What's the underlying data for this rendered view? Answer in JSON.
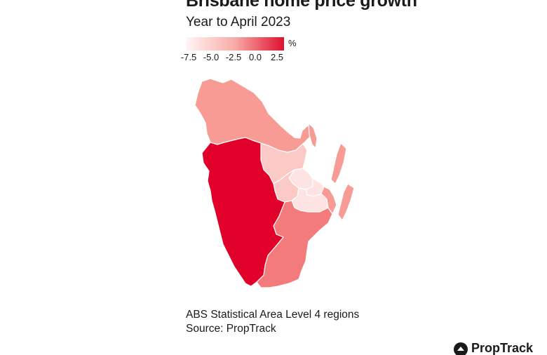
{
  "title": "Brisbane home price growth",
  "subtitle": "Year to April 2023",
  "legend": {
    "unit": "%",
    "ticks": [
      "-7.5",
      "-5.0",
      "-2.5",
      "0.0",
      "2.5"
    ],
    "color_low": "#fde6e6",
    "color_high": "#e0102f"
  },
  "footer": {
    "line1": "ABS Statistical Area Level 4 regions",
    "line2": "Source: PropTrack"
  },
  "logo": {
    "text": "PropTrack",
    "icon": "proptrack-logo-icon"
  },
  "colors": {
    "dark_red": "#e1002a",
    "mid_red": "#f37b7b",
    "light_red": "#f79b94",
    "pale_red": "#fbc9c6",
    "very_pale": "#fde4e2",
    "border": "#ffffff"
  }
}
